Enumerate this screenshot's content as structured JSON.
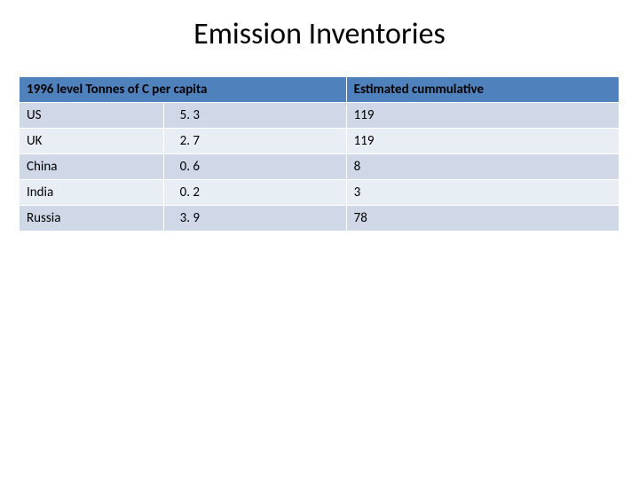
{
  "title": "Emission Inventories",
  "table": {
    "header_bg": "#4f81bd",
    "band_a_bg": "#d0d8e8",
    "band_b_bg": "#e9edf4",
    "text_color": "#000000",
    "header_left": "1996 level Tonnes of C per capita",
    "header_right": "Estimated cummulative",
    "rows": [
      {
        "country": "US",
        "per_capita": "5. 3",
        "cumulative": "119"
      },
      {
        "country": "UK",
        "per_capita": "2. 7",
        "cumulative": "119"
      },
      {
        "country": "China",
        "per_capita": "0. 6",
        "cumulative": "8"
      },
      {
        "country": "India",
        "per_capita": "0. 2",
        "cumulative": "3"
      },
      {
        "country": "Russia",
        "per_capita": "3. 9",
        "cumulative": "78"
      }
    ]
  }
}
